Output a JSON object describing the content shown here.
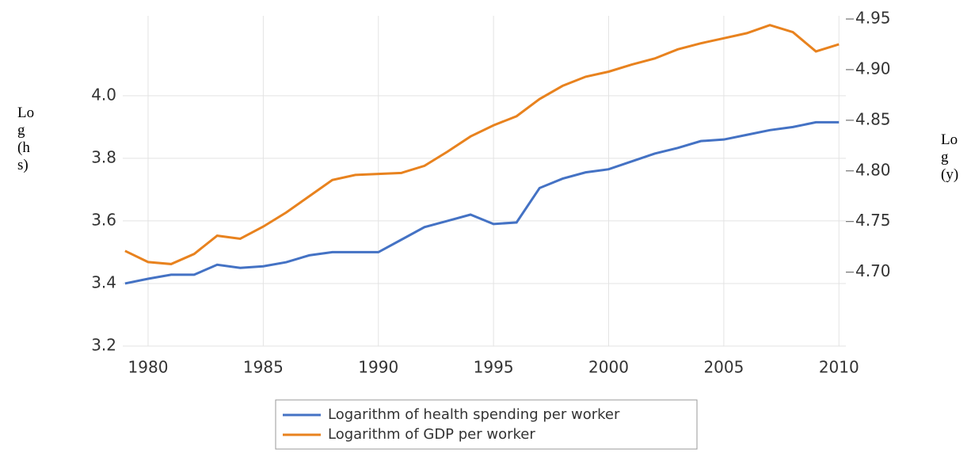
{
  "chart_data": {
    "type": "line",
    "ylabel": "Log (hs)",
    "y2label": "Log (y)",
    "x": [
      1979,
      1980,
      1981,
      1982,
      1983,
      1984,
      1985,
      1986,
      1987,
      1988,
      1989,
      1990,
      1991,
      1992,
      1993,
      1994,
      1995,
      1996,
      1997,
      1998,
      1999,
      2000,
      2001,
      2002,
      2003,
      2004,
      2005,
      2006,
      2007,
      2008,
      2009,
      2010
    ],
    "series": [
      {
        "name": "Logarithm of health spending per worker",
        "color": "#4472c4",
        "values": [
          3.4,
          3.415,
          3.428,
          3.428,
          3.46,
          3.45,
          3.455,
          3.468,
          3.49,
          3.5,
          3.5,
          3.5,
          3.54,
          3.58,
          3.6,
          3.62,
          3.59,
          3.595,
          3.705,
          3.735,
          3.755,
          3.765,
          3.79,
          3.815,
          3.833,
          3.855,
          3.86,
          3.875,
          3.89,
          3.9,
          3.915,
          3.915
        ]
      },
      {
        "name": "Logarithm of GDP per worker",
        "color": "#e8821e",
        "axis": "y2",
        "values": [
          4.721,
          4.71,
          4.708,
          4.718,
          4.736,
          4.733,
          4.745,
          4.759,
          4.775,
          4.791,
          4.796,
          4.797,
          4.798,
          4.805,
          4.819,
          4.834,
          4.845,
          4.854,
          4.871,
          4.884,
          4.893,
          4.898,
          4.905,
          4.911,
          4.92,
          4.926,
          4.931,
          4.936,
          4.944,
          4.937,
          4.918,
          4.925
        ]
      }
    ],
    "xlim": [
      1978.9,
      2010.3
    ],
    "xticks": [
      1980,
      1985,
      1990,
      1995,
      2000,
      2005,
      2010
    ],
    "ylim": [
      3.2,
      4.245
    ],
    "yticks": [
      {
        "value": 3.2,
        "label": "3.2"
      },
      {
        "value": 3.4,
        "label": "3.4"
      },
      {
        "value": 3.6,
        "label": "3.6"
      },
      {
        "value": 3.8,
        "label": "3.8"
      },
      {
        "value": 4.0,
        "label": "4.0"
      }
    ],
    "y2lim": [
      4.627,
      4.95
    ],
    "y2ticks": [
      {
        "value": 4.7,
        "label": "4.70"
      },
      {
        "value": 4.75,
        "label": "4.75"
      },
      {
        "value": 4.8,
        "label": "4.80"
      },
      {
        "value": 4.85,
        "label": "4.85"
      },
      {
        "value": 4.9,
        "label": "4.90"
      },
      {
        "value": 4.95,
        "label": "4.95"
      }
    ],
    "grid": true,
    "legend": "bottom"
  }
}
